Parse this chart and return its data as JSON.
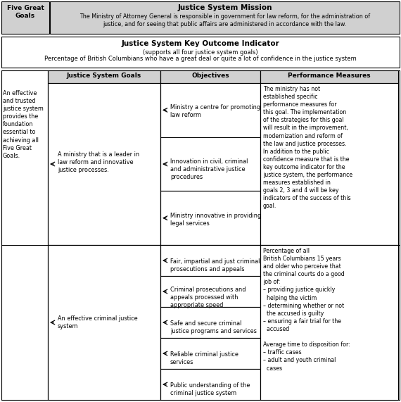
{
  "mission_left": "Five Great\nGoals",
  "mission_title": "Justice System Mission",
  "mission_body": "The Ministry of Attorney General is responsible in government for law reform, for the administration of\njustice, and for seeing that public affairs are administered in accordance with the law.",
  "key_title": "Justice System Key Outcome Indicator",
  "key_line2": "(supports all four justice system goals)",
  "key_line3": "Percentage of British Columbians who have a great deal or quite a lot of confidence in the justice system",
  "col_headers": [
    "Justice System Goals",
    "Objectives",
    "Performance Measures"
  ],
  "left_text": "An effective\nand trusted\njustice system\nprovides the\nfoundation\nessential to\nachieving all\nFive Great\nGoals.",
  "s1_goal": "A ministry that is a leader in\nlaw reform and innovative\njustice processes.",
  "s1_objs": [
    "Ministry a centre for promoting\nlaw reform",
    "Innovation in civil, criminal\nand administrative justice\nprocedures",
    "Ministry innovative in providing\nlegal services"
  ],
  "s1_perf": "The ministry has not\nestablished specific\nperformance measures for\nthis goal. The implementation\nof the strategies for this goal\nwill result in the improvement,\nmodernization and reform of\nthe law and justice processes.\nIn addition to the public\nconfidence measure that is the\nkey outcome indicator for the\njustice system, the performance\nmeasures established in\ngoals 2, 3 and 4 will be key\nindicators of the success of this\ngoal.",
  "s2_goal": "An effective criminal justice\nsystem",
  "s2_objs": [
    "Fair, impartial and just criminal\nprosecutions and appeals",
    "Criminal prosecutions and\nappeals processed with\nappropriate speed",
    "Safe and secure criminal\njustice programs and services",
    "Reliable criminal justice\nservices",
    "Public understanding of the\ncriminal justice system"
  ],
  "s2_perf": "Percentage of all\nBritish Columbians 15 years\nand older who perceive that\nthe criminal courts do a good\njob of:\n– providing justice quickly\n  helping the victim\n– determining whether or not\n  the accused is guilty\n– ensuring a fair trial for the\n  accused\n\nAverage time to disposition for:\n– traffic cases\n– adult and youth criminal\n  cases",
  "gray": "#d0d0d0",
  "white": "#ffffff",
  "black": "#000000"
}
